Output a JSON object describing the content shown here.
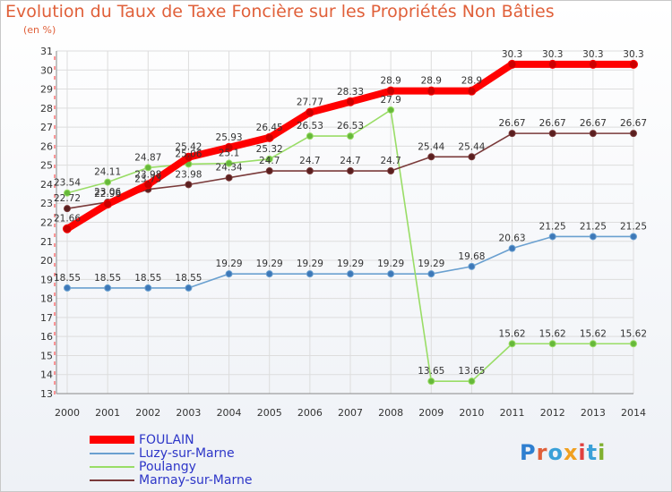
{
  "title": "Evolution du Taux de Taxe Foncière sur les Propriétés Non Bâties",
  "unit_label": "(en %)",
  "logo_text": "Proxiti",
  "chart_data": {
    "type": "line",
    "title": "Evolution du Taux de Taxe Foncière sur les Propriétés Non Bâties",
    "ylabel": "(en %)",
    "xlabel": "",
    "categories": [
      "2000",
      "2001",
      "2002",
      "2003",
      "2004",
      "2005",
      "2006",
      "2007",
      "2008",
      "2009",
      "2010",
      "2011",
      "2012",
      "2013",
      "2014"
    ],
    "ylim": [
      13,
      31
    ],
    "yticks": [
      "13",
      "14",
      "15",
      "16",
      "17",
      "18",
      "19",
      "20",
      "21",
      "22",
      "23",
      "24",
      "25",
      "26",
      "27",
      "28",
      "29",
      "30",
      "31"
    ],
    "legend_position": "bottom-left",
    "series": [
      {
        "name": "FOULAIN",
        "color": "#ff0000",
        "values": [
          21.66,
          22.96,
          23.98,
          25.42,
          25.93,
          26.45,
          27.77,
          28.33,
          28.9,
          28.9,
          28.9,
          30.3,
          30.3,
          30.3,
          30.3
        ],
        "labels": [
          "21.66",
          "22.96",
          "23.98",
          "25.42",
          "25.93",
          "26.45",
          "27.77",
          "28.33",
          "28.9",
          "28.9",
          "28.9",
          "30.3",
          "30.3",
          "30.3",
          "30.3"
        ]
      },
      {
        "name": "Luzy-sur-Marne",
        "color": "#6aa0d0",
        "values": [
          18.55,
          18.55,
          18.55,
          18.55,
          19.29,
          19.29,
          19.29,
          19.29,
          19.29,
          19.29,
          19.68,
          20.63,
          21.25,
          21.25,
          21.25
        ],
        "labels": [
          "18.55",
          "18.55",
          "18.55",
          "18.55",
          "19.29",
          "19.29",
          "19.29",
          "19.29",
          "19.29",
          "19.29",
          "19.68",
          "20.63",
          "21.25",
          "21.25",
          "21.25"
        ]
      },
      {
        "name": "Poulangy",
        "color": "#99dd66",
        "values": [
          23.54,
          24.11,
          24.87,
          25.06,
          25.1,
          25.32,
          26.53,
          26.53,
          27.9,
          13.65,
          13.65,
          15.62,
          15.62,
          15.62,
          15.62
        ],
        "labels": [
          "23.54",
          "24.11",
          "24.87",
          "25.06",
          "25.1",
          "25.32",
          "26.53",
          "26.53",
          "27.9",
          "13.65",
          "13.65",
          "15.62",
          "15.62",
          "15.62",
          "15.62"
        ]
      },
      {
        "name": "Marnay-sur-Marne",
        "color": "#7a3a3a",
        "values": [
          22.72,
          23.06,
          23.73,
          23.98,
          24.34,
          24.7,
          24.7,
          24.7,
          24.7,
          25.44,
          25.44,
          26.67,
          26.67,
          26.67,
          26.67
        ],
        "labels": [
          "22.72",
          "23.06",
          "23.73",
          "23.98",
          "24.34",
          "24.7",
          "24.7",
          "24.7",
          "24.7",
          "25.44",
          "25.44",
          "26.67",
          "26.67",
          "26.67",
          "26.67"
        ]
      }
    ]
  }
}
